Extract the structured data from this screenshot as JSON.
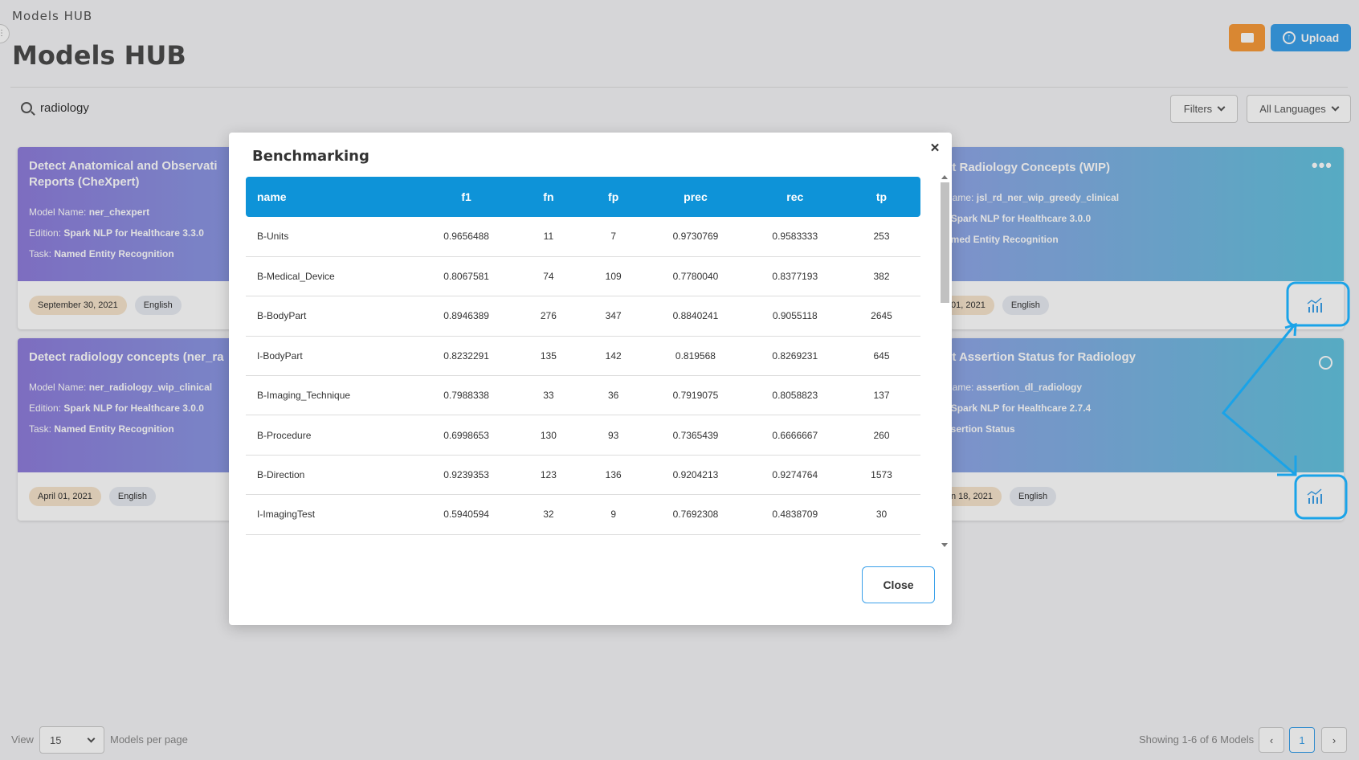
{
  "header": {
    "breadcrumb": "Models HUB",
    "title": "Models HUB",
    "upload_label": "Upload"
  },
  "search": {
    "value": "radiology"
  },
  "filters": {
    "filters_label": "Filters",
    "language_label": "All Languages"
  },
  "cards": [
    {
      "title": "Detect Anatomical and Observati Reports (CheXpert)",
      "title_line1": "Detect Anatomical and Observati",
      "title_line2": "Reports (CheXpert)",
      "line1_prefix": "Model Name:",
      "line1_value": "ner_chexpert",
      "line2_prefix": "Edition:",
      "line2_value": "Spark NLP for Healthcare 3.3.0",
      "line3_prefix": "Task:",
      "line3_value": "Named Entity Recognition",
      "date": "September 30, 2021",
      "language": "English"
    },
    {
      "title": "ct Radiology Concepts (WIP)",
      "line1_prefix": "Name:",
      "line1_value": "jsl_rd_ner_wip_greedy_clinical",
      "line2_prefix": ":",
      "line2_value": "Spark NLP for Healthcare 3.0.0",
      "line3_value": "Named Entity Recognition",
      "line3_partial": "amed Entity Recognition",
      "date": "01, 2021",
      "language": "English"
    },
    {
      "title": "Detect radiology concepts (ner_ra",
      "line1_prefix": "Model Name:",
      "line1_value": "ner_radiology_wip_clinical",
      "line2_prefix": "Edition:",
      "line2_value": "Spark NLP for Healthcare 3.0.0",
      "line3_prefix": "Task:",
      "line3_value": "Named Entity Recognition",
      "date": "April 01, 2021",
      "language": "English"
    },
    {
      "title": "ct Assertion Status for Radiology",
      "line1_prefix": "Name:",
      "line1_value": "assertion_dl_radiology",
      "line2_prefix": ":",
      "line2_value": "Spark NLP for Healthcare 2.7.4",
      "line3_partial": "ssertion Status",
      "date": "n 18, 2021",
      "language": "English"
    }
  ],
  "modal": {
    "title": "Benchmarking",
    "close_label": "Close",
    "columns": [
      "name",
      "f1",
      "fn",
      "fp",
      "prec",
      "rec",
      "tp"
    ],
    "rows": [
      [
        "B-Units",
        "0.9656488",
        "11",
        "7",
        "0.9730769",
        "0.9583333",
        "253"
      ],
      [
        "B-Medical_Device",
        "0.8067581",
        "74",
        "109",
        "0.7780040",
        "0.8377193",
        "382"
      ],
      [
        "B-BodyPart",
        "0.8946389",
        "276",
        "347",
        "0.8840241",
        "0.9055118",
        "2645"
      ],
      [
        "I-BodyPart",
        "0.8232291",
        "135",
        "142",
        "0.819568",
        "0.8269231",
        "645"
      ],
      [
        "B-Imaging_Technique",
        "0.7988338",
        "33",
        "36",
        "0.7919075",
        "0.8058823",
        "137"
      ],
      [
        "B-Procedure",
        "0.6998653",
        "130",
        "93",
        "0.7365439",
        "0.6666667",
        "260"
      ],
      [
        "B-Direction",
        "0.9239353",
        "123",
        "136",
        "0.9204213",
        "0.9274764",
        "1573"
      ],
      [
        "I-ImagingTest",
        "0.5940594",
        "32",
        "9",
        "0.7692308",
        "0.4838709",
        "30"
      ]
    ]
  },
  "footer": {
    "view_label": "View",
    "per_page_value": "15",
    "per_page_label": "Models per page",
    "showing": "Showing 1-6 of 6 Models",
    "page": "1",
    "prev_label": "‹",
    "next_label": "›"
  },
  "colors": {
    "accent": "#0e93d8",
    "upload": "#3aa0ea",
    "orange": "#f79a3a",
    "annotation": "#1aa3e8"
  }
}
